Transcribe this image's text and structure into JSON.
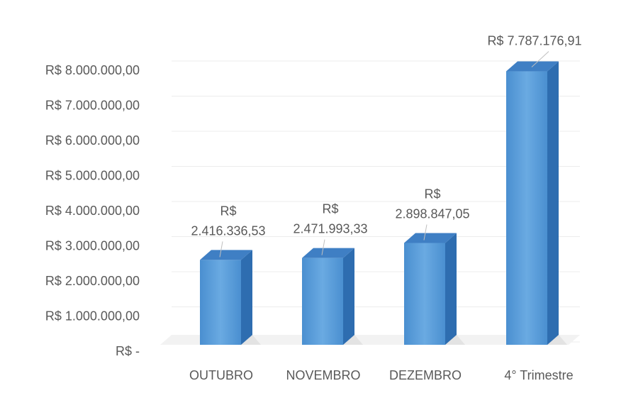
{
  "chart_data": {
    "type": "bar3d",
    "categories": [
      "OUTUBRO",
      "NOVEMBRO",
      "DEZEMBRO",
      "4° Trimestre"
    ],
    "values": [
      2416336.53,
      2471993.33,
      2898847.05,
      7787176.91
    ],
    "value_labels": [
      "R$ 2.416.336,53",
      "R$ 2.471.993,33",
      "R$ 2.898.847,05",
      "R$ 7.787.176,91"
    ],
    "color": "#5b9bd5",
    "ylim": [
      0,
      8000000
    ],
    "yticks": [
      {
        "value": 0,
        "label": "R$ -"
      },
      {
        "value": 1000000,
        "label": "R$ 1.000.000,00"
      },
      {
        "value": 2000000,
        "label": "R$ 2.000.000,00"
      },
      {
        "value": 3000000,
        "label": "R$ 3.000.000,00"
      },
      {
        "value": 4000000,
        "label": "R$ 4.000.000,00"
      },
      {
        "value": 5000000,
        "label": "R$ 5.000.000,00"
      },
      {
        "value": 6000000,
        "label": "R$ 6.000.000,00"
      },
      {
        "value": 7000000,
        "label": "R$ 7.000.000,00"
      },
      {
        "value": 8000000,
        "label": "R$ 8.000.000,00"
      }
    ],
    "grid": true
  }
}
